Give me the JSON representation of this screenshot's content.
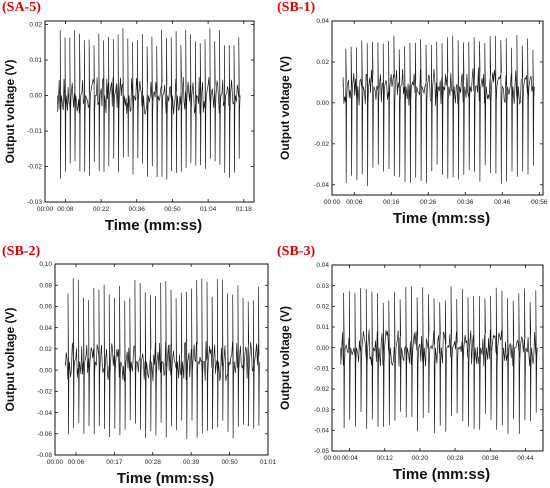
{
  "panels": [
    {
      "label": "(SA-5)",
      "xlabel": "Time (mm:ss)",
      "ylabel": "Output voltage (V)",
      "x_ticks": [
        "00:00",
        "00:08",
        "00:22",
        "00:36",
        "00:50",
        "01:04",
        "01:18"
      ],
      "y_ticks": [
        "0.02",
        "0.01",
        "0.00",
        "-0.01",
        "-0.02",
        "-0.03"
      ]
    },
    {
      "label": "(SB-1)",
      "xlabel": "Time (mm:ss)",
      "ylabel": "Output voltage (V)",
      "x_ticks": [
        "00:00",
        "00:06",
        "00:16",
        "00:26",
        "00:36",
        "00:46",
        "00:56"
      ],
      "y_ticks": [
        "0.04",
        "0.02",
        "0.00",
        "-0.02",
        "-0.04"
      ]
    },
    {
      "label": "(SB-2)",
      "xlabel": "Time (mm:ss)",
      "ylabel": "Output voltage (V)",
      "x_ticks": [
        "00:00",
        "00:06",
        "00:17",
        "00:28",
        "00:39",
        "00:50",
        "01:01"
      ],
      "y_ticks": [
        "0.10",
        "0.08",
        "0.06",
        "0.04",
        "0.02",
        "0.00",
        "-0.02",
        "-0.04",
        "-0.06",
        "-0.08"
      ]
    },
    {
      "label": "(SB-3)",
      "xlabel": "Time (mm:ss)",
      "ylabel": "Output voltage (V)",
      "x_ticks": [
        "00:00",
        "00:04",
        "00:12",
        "00:20",
        "00:28",
        "00:36",
        "00:44"
      ],
      "y_ticks": [
        "0.04",
        "0.03",
        "0.02",
        "0.01",
        "0.00",
        "-0.01",
        "-0.02",
        "-0.03",
        "-0.04",
        "-0.05"
      ]
    }
  ],
  "chart_data": [
    {
      "type": "line",
      "title": "(SA-5)",
      "xlabel": "Time (mm:ss)",
      "ylabel": "Output voltage (V)",
      "xlim": [
        "00:00",
        "01:22"
      ],
      "ylim": [
        -0.03,
        0.021
      ],
      "x_ticks": [
        "00:00",
        "00:08",
        "00:22",
        "00:36",
        "00:50",
        "01:04",
        "01:18"
      ],
      "y_ticks": [
        0.02,
        0.01,
        0.0,
        -0.01,
        -0.02,
        -0.03
      ],
      "signal": {
        "start": "00:05",
        "end": "01:17",
        "pulses": 38,
        "peak_max": 0.019,
        "peak_min": -0.024,
        "baseline": 0.0
      },
      "grid": false
    },
    {
      "type": "line",
      "title": "(SB-1)",
      "xlabel": "Time (mm:ss)",
      "ylabel": "Output voltage (V)",
      "xlim": [
        "00:00",
        "00:57"
      ],
      "ylim": [
        -0.045,
        0.04
      ],
      "x_ticks": [
        "00:00",
        "00:06",
        "00:16",
        "00:26",
        "00:36",
        "00:46",
        "00:56"
      ],
      "y_ticks": [
        0.04,
        0.02,
        0.0,
        -0.02,
        -0.04
      ],
      "signal": {
        "start": "00:03",
        "end": "00:55",
        "pulses": 36,
        "peak_max": 0.035,
        "peak_min": -0.041,
        "baseline": 0.008
      },
      "grid": false
    },
    {
      "type": "line",
      "title": "(SB-2)",
      "xlabel": "Time (mm:ss)",
      "ylabel": "Output voltage (V)",
      "xlim": [
        "00:00",
        "01:01"
      ],
      "ylim": [
        -0.08,
        0.1
      ],
      "x_ticks": [
        "00:00",
        "00:06",
        "00:17",
        "00:28",
        "00:39",
        "00:50",
        "01:01"
      ],
      "y_ticks": [
        0.1,
        0.08,
        0.06,
        0.04,
        0.02,
        0.0,
        -0.02,
        -0.04,
        -0.06,
        -0.08
      ],
      "signal": {
        "start": "00:03",
        "end": "00:59",
        "pulses": 38,
        "peak_max": 0.088,
        "peak_min": -0.065,
        "baseline": 0.008
      },
      "grid": false
    },
    {
      "type": "line",
      "title": "(SB-3)",
      "xlabel": "Time (mm:ss)",
      "ylabel": "Output voltage (V)",
      "xlim": [
        "00:00",
        "00:48"
      ],
      "ylim": [
        -0.05,
        0.04
      ],
      "x_ticks": [
        "00:00",
        "00:04",
        "00:12",
        "00:20",
        "00:28",
        "00:36",
        "00:44"
      ],
      "y_ticks": [
        0.04,
        0.03,
        0.02,
        0.01,
        0.0,
        -0.01,
        -0.02,
        -0.03,
        -0.04,
        -0.05
      ],
      "signal": {
        "start": "00:02",
        "end": "00:47",
        "pulses": 35,
        "peak_max": 0.03,
        "peak_min": -0.043,
        "baseline": 0.0
      },
      "grid": false
    }
  ]
}
